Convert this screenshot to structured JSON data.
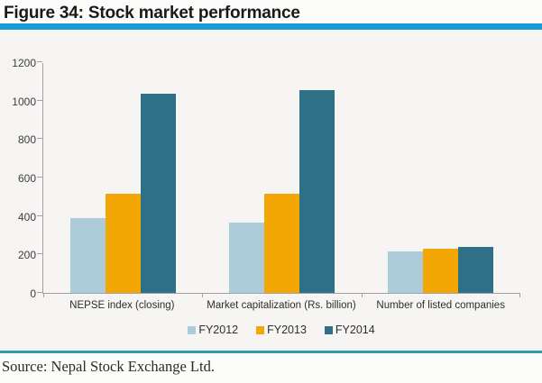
{
  "figure": {
    "title": "Figure 34: Stock market performance",
    "source": "Source: Nepal Stock Exchange Ltd."
  },
  "colors": {
    "title_rule": "#189cd6",
    "source_rule": "#2f9ab0",
    "axis_line": "#a1a1a1",
    "chart_background": "#f6f5f3",
    "page_background": "#fcfcfa",
    "text": "#2e2e2e"
  },
  "chart_data": {
    "type": "bar",
    "title": "",
    "xlabel": "",
    "ylabel": "",
    "categories": [
      "NEPSE index (closing)",
      "Market capitalization (Rs. billion)",
      "Number of listed  companies"
    ],
    "series": [
      {
        "name": "FY2012",
        "color": "#abccd8",
        "values": [
          390,
          368,
          216
        ]
      },
      {
        "name": "FY2013",
        "color": "#f3a705",
        "values": [
          518,
          514,
          230
        ]
      },
      {
        "name": "FY2014",
        "color": "#2e7086",
        "values": [
          1036,
          1057,
          237
        ]
      }
    ],
    "ylim": [
      0,
      1200
    ],
    "yticks": [
      0,
      200,
      400,
      600,
      800,
      1000,
      1200
    ],
    "grid": false,
    "legend_position": "bottom"
  }
}
